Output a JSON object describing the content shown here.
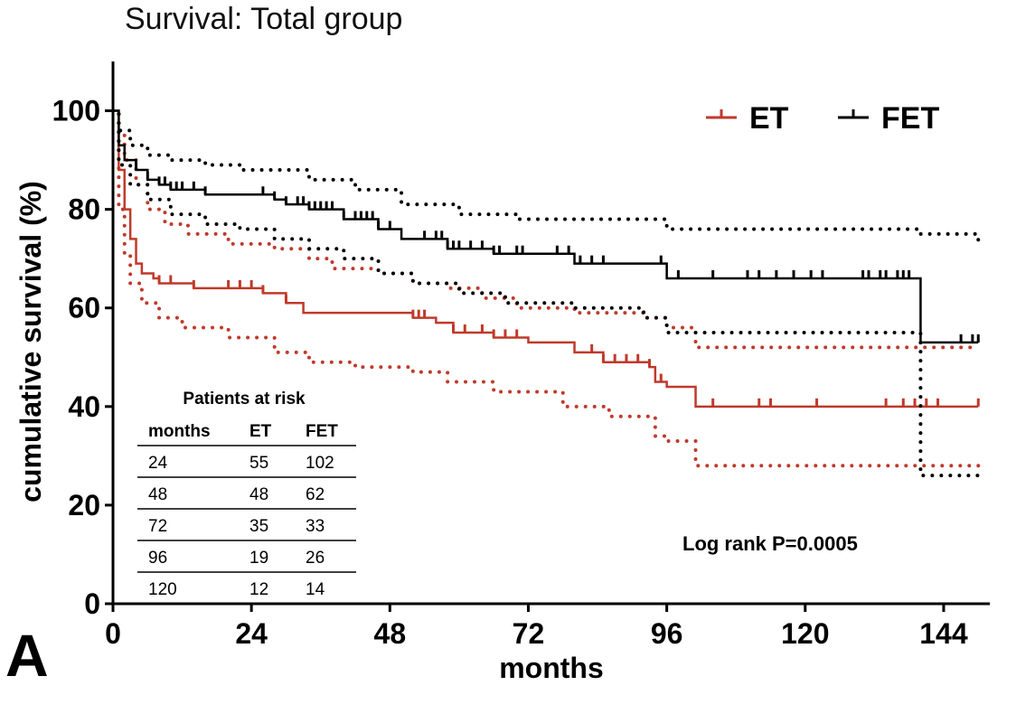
{
  "figure": {
    "panel_label": "A"
  },
  "chart_data": {
    "type": "line",
    "subtype": "kaplan-meier",
    "title": "Survival: Total group",
    "xlabel": "months",
    "ylabel": "cumulative survival (%)",
    "xlim": [
      0,
      152
    ],
    "ylim": [
      0,
      110
    ],
    "xticks": [
      0,
      24,
      48,
      72,
      96,
      120,
      144
    ],
    "yticks": [
      0,
      20,
      40,
      60,
      80,
      100
    ],
    "grid": false,
    "legend_position": "top-right",
    "annotation": "Log rank P=0.0005",
    "series": [
      {
        "name": "ET",
        "color": "#c0392b",
        "line": [
          [
            0,
            100
          ],
          [
            1,
            88
          ],
          [
            2,
            80
          ],
          [
            3,
            74
          ],
          [
            4,
            69
          ],
          [
            5,
            67
          ],
          [
            7,
            66
          ],
          [
            8,
            65
          ],
          [
            14,
            64
          ],
          [
            26,
            63
          ],
          [
            30,
            61
          ],
          [
            33,
            59
          ],
          [
            52,
            58
          ],
          [
            56,
            57
          ],
          [
            59,
            55
          ],
          [
            66,
            54
          ],
          [
            72,
            53
          ],
          [
            76,
            53
          ],
          [
            80,
            51
          ],
          [
            85,
            49
          ],
          [
            93,
            48
          ],
          [
            94,
            45
          ],
          [
            96,
            44
          ],
          [
            101,
            40
          ],
          [
            150,
            40
          ]
        ],
        "censored": [
          8,
          10,
          14,
          20,
          22,
          24,
          26,
          30,
          52,
          53,
          54,
          59,
          61,
          64,
          66,
          68,
          70,
          83,
          85,
          87,
          89,
          91,
          93,
          95,
          104,
          112,
          114,
          122,
          134,
          137,
          139,
          141,
          143,
          150
        ],
        "ci_upper": [
          [
            0,
            100
          ],
          [
            1,
            95
          ],
          [
            2,
            90
          ],
          [
            4,
            85
          ],
          [
            6,
            80
          ],
          [
            9,
            77
          ],
          [
            13,
            75
          ],
          [
            20,
            73
          ],
          [
            28,
            72
          ],
          [
            34,
            70
          ],
          [
            38,
            68
          ],
          [
            46,
            67
          ],
          [
            52,
            65
          ],
          [
            58,
            64
          ],
          [
            64,
            62
          ],
          [
            70,
            60
          ],
          [
            80,
            59
          ],
          [
            92,
            58
          ],
          [
            96,
            56
          ],
          [
            101,
            52
          ],
          [
            150,
            52
          ]
        ],
        "ci_lower": [
          [
            0,
            100
          ],
          [
            1,
            80
          ],
          [
            2,
            71
          ],
          [
            3,
            65
          ],
          [
            5,
            61
          ],
          [
            8,
            58
          ],
          [
            12,
            56
          ],
          [
            20,
            54
          ],
          [
            28,
            51
          ],
          [
            34,
            49
          ],
          [
            42,
            48
          ],
          [
            52,
            47
          ],
          [
            58,
            45
          ],
          [
            66,
            43
          ],
          [
            78,
            40
          ],
          [
            86,
            38
          ],
          [
            94,
            34
          ],
          [
            96,
            33
          ],
          [
            101,
            28
          ],
          [
            150,
            27
          ]
        ]
      },
      {
        "name": "FET",
        "color": "#000000",
        "line": [
          [
            0,
            100
          ],
          [
            1,
            93
          ],
          [
            2,
            90
          ],
          [
            4,
            88
          ],
          [
            6,
            86
          ],
          [
            8,
            85
          ],
          [
            10,
            84
          ],
          [
            16,
            83
          ],
          [
            28,
            82
          ],
          [
            30,
            81
          ],
          [
            34,
            80
          ],
          [
            40,
            78
          ],
          [
            46,
            76
          ],
          [
            50,
            74
          ],
          [
            58,
            72
          ],
          [
            66,
            71
          ],
          [
            80,
            69
          ],
          [
            96,
            66
          ],
          [
            140,
            66
          ],
          [
            140,
            53
          ],
          [
            150,
            53
          ]
        ],
        "censored": [
          4,
          6,
          8,
          9,
          10,
          11,
          12,
          14,
          16,
          26,
          28,
          30,
          32,
          33,
          34,
          35,
          36,
          37,
          38,
          40,
          42,
          43,
          44,
          45,
          46,
          48,
          54,
          56,
          57,
          58,
          59,
          60,
          62,
          64,
          66,
          67,
          70,
          71,
          77,
          79,
          81,
          83,
          85,
          95,
          98,
          104,
          110,
          112,
          115,
          118,
          121,
          123,
          130,
          131,
          133,
          134,
          136,
          137,
          138,
          147,
          149,
          150
        ],
        "ci_upper": [
          [
            0,
            100
          ],
          [
            1,
            96
          ],
          [
            3,
            93
          ],
          [
            6,
            91
          ],
          [
            10,
            90
          ],
          [
            16,
            89
          ],
          [
            22,
            88
          ],
          [
            34,
            86
          ],
          [
            42,
            84
          ],
          [
            50,
            81
          ],
          [
            60,
            79
          ],
          [
            70,
            78
          ],
          [
            96,
            76
          ],
          [
            140,
            75
          ],
          [
            150,
            73
          ]
        ],
        "ci_lower": [
          [
            0,
            100
          ],
          [
            1,
            89
          ],
          [
            3,
            85
          ],
          [
            6,
            82
          ],
          [
            10,
            79
          ],
          [
            16,
            77
          ],
          [
            22,
            76
          ],
          [
            28,
            74
          ],
          [
            34,
            72
          ],
          [
            40,
            70
          ],
          [
            46,
            67
          ],
          [
            52,
            65
          ],
          [
            60,
            63
          ],
          [
            68,
            61
          ],
          [
            80,
            60
          ],
          [
            92,
            58
          ],
          [
            96,
            55
          ],
          [
            140,
            54
          ],
          [
            140,
            26
          ],
          [
            150,
            26
          ]
        ]
      }
    ],
    "risk_table": {
      "title": "Patients at risk",
      "headers": [
        "months",
        "ET",
        "FET"
      ],
      "rows": [
        [
          "24",
          "55",
          "102"
        ],
        [
          "48",
          "48",
          "62"
        ],
        [
          "72",
          "35",
          "33"
        ],
        [
          "96",
          "19",
          "26"
        ],
        [
          "120",
          "12",
          "14"
        ]
      ]
    }
  }
}
